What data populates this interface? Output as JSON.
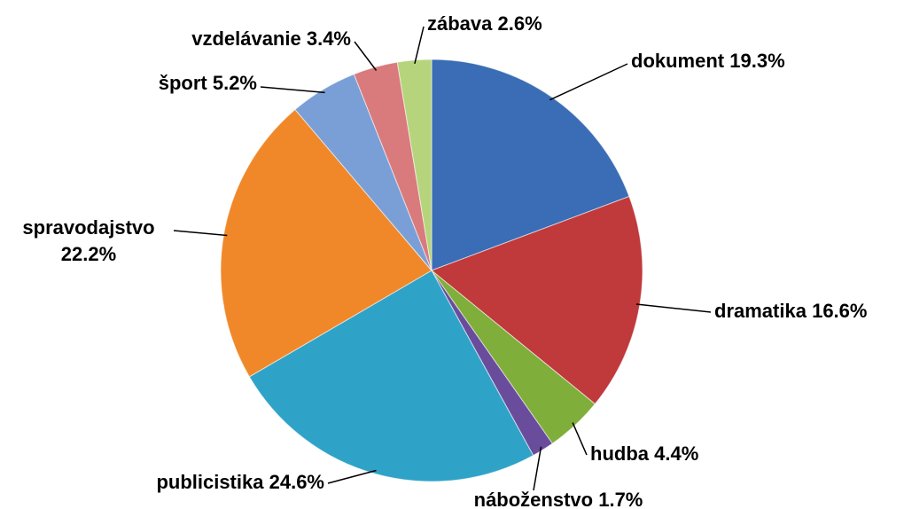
{
  "chart_data": {
    "type": "pie",
    "categories": [
      "dokument",
      "dramatika",
      "hudba",
      "náboženstvo",
      "publicistika",
      "spravodajstvo",
      "šport",
      "vzdelávanie",
      "zábava"
    ],
    "values": [
      19.3,
      16.6,
      4.4,
      1.7,
      24.6,
      22.2,
      5.2,
      3.4,
      2.6
    ],
    "value_labels": [
      "19.3%",
      "16.6%",
      "4.4%",
      "1.7%",
      "24.6%",
      "22.2%",
      "5.2%",
      "3.4%",
      "2.6%"
    ],
    "colors": [
      "#3a6db5",
      "#c0393b",
      "#7fae3a",
      "#6a4c9c",
      "#2fa3c7",
      "#f0882a",
      "#7a9fd6",
      "#d97a7c",
      "#b5d47c"
    ]
  }
}
